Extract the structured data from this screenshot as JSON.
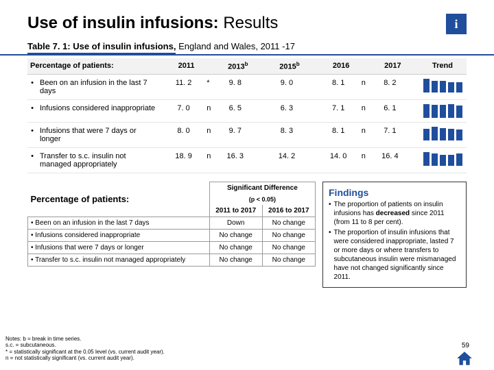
{
  "title_bold": "Use of insulin infusions:",
  "title_light": "Results",
  "info_label": "i",
  "caption_bold": "Table 7. 1: Use of insulin infusions,",
  "caption_light": " England and Wales, 2011 -17",
  "columns": [
    "Percentage of patients:",
    "2011",
    "2013",
    "2015",
    "2016",
    "2017",
    "Trend"
  ],
  "col_sup": [
    "",
    "",
    "b",
    "b",
    "",
    "",
    ""
  ],
  "rows": [
    {
      "label": "Been on an infusion in the last 7 days",
      "vals": [
        "11. 2",
        "9. 8",
        "9. 0",
        "8. 1",
        "8. 2"
      ],
      "sig": [
        "*",
        "",
        "",
        "n",
        ""
      ],
      "spark": [
        28,
        24,
        23,
        21,
        21
      ]
    },
    {
      "label": "Infusions considered inappropriate",
      "vals": [
        "7. 0",
        "6. 5",
        "6. 3",
        "7. 1",
        "6. 1"
      ],
      "sig": [
        "n",
        "",
        "",
        "n",
        ""
      ],
      "spark": [
        22,
        20,
        20,
        22,
        19
      ]
    },
    {
      "label": "Infusions that were 7 days or longer",
      "vals": [
        "8. 0",
        "9. 7",
        "8. 3",
        "8. 1",
        "7. 1"
      ],
      "sig": [
        "n",
        "",
        "",
        "n",
        ""
      ],
      "spark": [
        22,
        26,
        23,
        22,
        20
      ]
    },
    {
      "label": "Transfer to s.c. insulin not managed appropriately",
      "vals": [
        "18. 9",
        "16. 3",
        "14. 2",
        "14. 0",
        "16. 4"
      ],
      "sig": [
        "n",
        "",
        "",
        "n",
        ""
      ],
      "spark": [
        30,
        27,
        24,
        24,
        27
      ]
    }
  ],
  "sig_head_left": "Percentage of patients:",
  "sig_head_right": "Significant Difference",
  "sig_sub": "(p < 0.05)",
  "sig_cols": [
    "2011 to 2017",
    "2016 to 2017"
  ],
  "sig_rows": [
    {
      "label": "Been on an infusion in the last 7 days",
      "c1": "Down",
      "c2": "No change"
    },
    {
      "label": "Infusions considered inappropriate",
      "c1": "No change",
      "c2": "No change"
    },
    {
      "label": "Infusions that were 7 days or longer",
      "c1": "No change",
      "c2": "No change"
    },
    {
      "label": "Transfer to s.c. insulin not managed appropriately",
      "c1": "No change",
      "c2": "No change"
    }
  ],
  "findings_title": "Findings",
  "findings": [
    "The proportion of patients on insulin infusions has <b>decreased</b> since 2011 (from 11 to 8 per cent).",
    "The proportion of insulin infusions that were considered inappropriate, lasted 7 or more days or where transfers to subcutaneous insulin were mismanaged have not changed significantly since 2011."
  ],
  "notes": [
    "Notes: b = break in time series.",
    "s.c. = subcutaneous.",
    "* = statistically significant at the 0.05 level (vs. current audit year).",
    "n = not statistically significant (vs. current audit year)."
  ],
  "pagenum": "59",
  "colors": {
    "brand": "#1f4e9c"
  }
}
